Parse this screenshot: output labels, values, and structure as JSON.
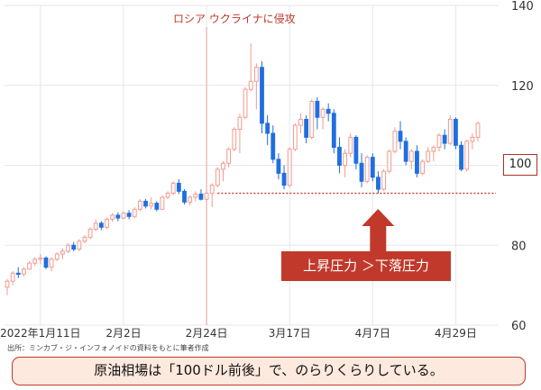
{
  "colors": {
    "up": "#f29b8c",
    "down": "#1f6fe0",
    "accent": "#c0392b",
    "grid": "#e6e6e6"
  },
  "annotations": {
    "event_label": "ロシア ウクライナに侵攻",
    "ref_value": "100",
    "pressure_text": "上昇圧力 ＞下落圧力",
    "source": "出所：ミンカブ・ジ・インフォノイドの資料をもとに筆者作成",
    "caption": "原油相場は「100ドル前後」で、のらりくらりしている。"
  },
  "chart_data": {
    "type": "candlestick",
    "y_ticks": [
      60,
      80,
      100,
      120,
      140
    ],
    "ylim": [
      60,
      140
    ],
    "x_ticks": [
      {
        "index": 6,
        "label": "2022年1月11日"
      },
      {
        "index": 21,
        "label": "2月2日"
      },
      {
        "index": 36,
        "label": "2月24日"
      },
      {
        "index": 51,
        "label": "3月17日"
      },
      {
        "index": 66,
        "label": "4月7日"
      },
      {
        "index": 81,
        "label": "4月29日"
      }
    ],
    "event_index": 36,
    "support_level": 93,
    "support_from_index": 38,
    "ohlc": [
      [
        69.5,
        71.5,
        67.5,
        71
      ],
      [
        71,
        73.5,
        70,
        73
      ],
      [
        73,
        74.5,
        71.8,
        72.8
      ],
      [
        72.8,
        74.5,
        72.2,
        74
      ],
      [
        74,
        76,
        73.8,
        75.5
      ],
      [
        75.5,
        77,
        74.8,
        76.5
      ],
      [
        76.5,
        77.8,
        75.2,
        76.8
      ],
      [
        76.8,
        77.2,
        74,
        74.5
      ],
      [
        74.5,
        77,
        73.5,
        76.5
      ],
      [
        76.5,
        78.2,
        76,
        77.8
      ],
      [
        77.8,
        79.2,
        76.5,
        78.5
      ],
      [
        78.5,
        80.5,
        78,
        80
      ],
      [
        80,
        80.8,
        78.5,
        79
      ],
      [
        79,
        81.5,
        78.5,
        81
      ],
      [
        81,
        82.5,
        80.5,
        82
      ],
      [
        82,
        84.5,
        81.5,
        84
      ],
      [
        84,
        86.5,
        83.5,
        85.5
      ],
      [
        85.5,
        86,
        83.8,
        84.5
      ],
      [
        84.5,
        87,
        84,
        86.5
      ],
      [
        86.5,
        88,
        85.8,
        87.5
      ],
      [
        87.5,
        88.2,
        86,
        86.8
      ],
      [
        86.8,
        88.5,
        86.5,
        88
      ],
      [
        88,
        88.8,
        86.5,
        87.2
      ],
      [
        87.2,
        89.5,
        86.8,
        89
      ],
      [
        89,
        91.5,
        88.5,
        91
      ],
      [
        91,
        91.6,
        89.2,
        89.8
      ],
      [
        89.8,
        92,
        89,
        90.5
      ],
      [
        90.5,
        91,
        88.5,
        89
      ],
      [
        89,
        92.5,
        88.8,
        92
      ],
      [
        92,
        93.5,
        91.5,
        93
      ],
      [
        93,
        96,
        92.5,
        95.5
      ],
      [
        95.5,
        96.5,
        92.8,
        93.5
      ],
      [
        93.5,
        94,
        90.2,
        90.8
      ],
      [
        90.8,
        92.5,
        90,
        92
      ],
      [
        92,
        93.5,
        91,
        92.8
      ],
      [
        92.8,
        94,
        91.2,
        91.5
      ],
      [
        91.5,
        93.5,
        91,
        93
      ],
      [
        93,
        95.5,
        89.5,
        95
      ],
      [
        95,
        99.5,
        94.5,
        99
      ],
      [
        99,
        101,
        96,
        100.5
      ],
      [
        100.5,
        104.5,
        99.5,
        104
      ],
      [
        104,
        109.5,
        103.5,
        109
      ],
      [
        109,
        113,
        103,
        112
      ],
      [
        112,
        119.5,
        111.5,
        119
      ],
      [
        119,
        130.5,
        118.5,
        121
      ],
      [
        121,
        125.5,
        114,
        124.5
      ],
      [
        124.5,
        126,
        108,
        110.5
      ],
      [
        110.5,
        112.5,
        105,
        108
      ],
      [
        108,
        110,
        100.5,
        101.5
      ],
      [
        101.5,
        103,
        96.5,
        98
      ],
      [
        98,
        100,
        94,
        95
      ],
      [
        95,
        104.5,
        94.5,
        104
      ],
      [
        104,
        110.5,
        103.5,
        110
      ],
      [
        110,
        113,
        108,
        111.5
      ],
      [
        111.5,
        112.5,
        105.5,
        107
      ],
      [
        107,
        116.5,
        106.5,
        116
      ],
      [
        116,
        117,
        109,
        112
      ],
      [
        112,
        114.5,
        109,
        114
      ],
      [
        114,
        115.5,
        111,
        113
      ],
      [
        113,
        114,
        103,
        104.5
      ],
      [
        104.5,
        107,
        98,
        100
      ],
      [
        100,
        104,
        97,
        103
      ],
      [
        103,
        108,
        102,
        107
      ],
      [
        107,
        107.5,
        99,
        100.5
      ],
      [
        100.5,
        103,
        94.5,
        96
      ],
      [
        96,
        102.5,
        95.5,
        102
      ],
      [
        102,
        103,
        96,
        97
      ],
      [
        97,
        98.5,
        93,
        94
      ],
      [
        94,
        99,
        93.5,
        98.5
      ],
      [
        98.5,
        104,
        98,
        103.5
      ],
      [
        103.5,
        109.5,
        103,
        108.5
      ],
      [
        108.5,
        111,
        104,
        106
      ],
      [
        106,
        107,
        100,
        101
      ],
      [
        101,
        104,
        99,
        103.5
      ],
      [
        103.5,
        105,
        97,
        98
      ],
      [
        98,
        101.5,
        97.5,
        101
      ],
      [
        101,
        104.5,
        100.5,
        103.5
      ],
      [
        103.5,
        105,
        101,
        104.5
      ],
      [
        104.5,
        108,
        103.5,
        107.5
      ],
      [
        107.5,
        109,
        104,
        105.5
      ],
      [
        105.5,
        112.5,
        105,
        111.5
      ],
      [
        111.5,
        112,
        104,
        105
      ],
      [
        105,
        106,
        98.5,
        99
      ],
      [
        99,
        106.5,
        98.5,
        106
      ],
      [
        106,
        108,
        104,
        107
      ],
      [
        107,
        111,
        106,
        110.5
      ]
    ]
  }
}
